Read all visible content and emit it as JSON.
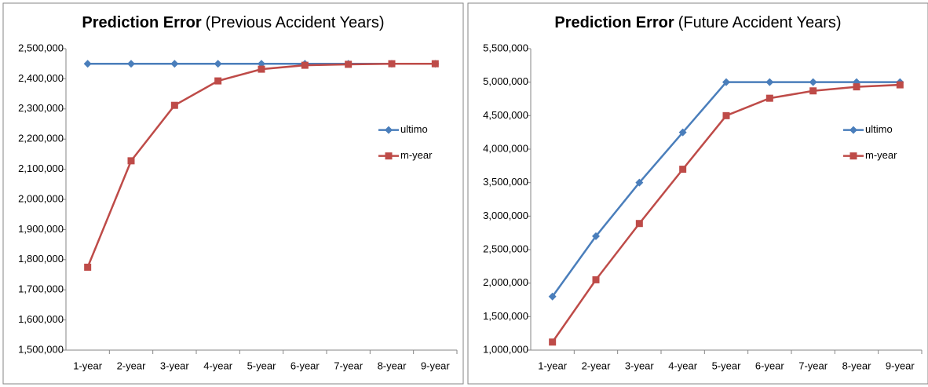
{
  "chart_data": [
    {
      "type": "line",
      "title": "Prediction Error",
      "subtitle": "(Previous Accident Years)",
      "categories": [
        "1-year",
        "2-year",
        "3-year",
        "4-year",
        "5-year",
        "6-year",
        "7-year",
        "8-year",
        "9-year"
      ],
      "series": [
        {
          "name": "ultimo",
          "color": "#4a7ebb",
          "marker": "diamond",
          "values": [
            2450000,
            2450000,
            2450000,
            2450000,
            2450000,
            2450000,
            2450000,
            2450000,
            2450000
          ]
        },
        {
          "name": "m-year",
          "color": "#be4b48",
          "marker": "square",
          "values": [
            1775000,
            2128000,
            2312000,
            2393000,
            2432000,
            2445000,
            2448000,
            2450000,
            2450000
          ]
        }
      ],
      "ylim": [
        1500000,
        2500000
      ],
      "yticks": [
        {
          "value": 1500000,
          "label": "1,500,000"
        },
        {
          "value": 1600000,
          "label": "1,600,000"
        },
        {
          "value": 1700000,
          "label": "1,700,000"
        },
        {
          "value": 1800000,
          "label": "1,800,000"
        },
        {
          "value": 1900000,
          "label": "1,900,000"
        },
        {
          "value": 2000000,
          "label": "2,000,000"
        },
        {
          "value": 2100000,
          "label": "2,100,000"
        },
        {
          "value": 2200000,
          "label": "2,200,000"
        },
        {
          "value": 2300000,
          "label": "2,300,000"
        },
        {
          "value": 2400000,
          "label": "2,400,000"
        },
        {
          "value": 2500000,
          "label": "2,500,000"
        }
      ],
      "grid": false,
      "legend": "right"
    },
    {
      "type": "line",
      "title": "Prediction Error",
      "subtitle": "(Future Accident Years)",
      "categories": [
        "1-year",
        "2-year",
        "3-year",
        "4-year",
        "5-year",
        "6-year",
        "7-year",
        "8-year",
        "9-year"
      ],
      "series": [
        {
          "name": "ultimo",
          "color": "#4a7ebb",
          "marker": "diamond",
          "values": [
            1800000,
            2700000,
            3500000,
            4250000,
            5000000,
            5000000,
            5000000,
            5000000,
            5000000
          ]
        },
        {
          "name": "m-year",
          "color": "#be4b48",
          "marker": "square",
          "values": [
            1120000,
            2050000,
            2890000,
            3700000,
            4500000,
            4760000,
            4870000,
            4930000,
            4960000
          ]
        }
      ],
      "ylim": [
        1000000,
        5500000
      ],
      "yticks": [
        {
          "value": 1000000,
          "label": "1,000,000"
        },
        {
          "value": 1500000,
          "label": "1,500,000"
        },
        {
          "value": 2000000,
          "label": "2,000,000"
        },
        {
          "value": 2500000,
          "label": "2,500,000"
        },
        {
          "value": 3000000,
          "label": "3,000,000"
        },
        {
          "value": 3500000,
          "label": "3,500,000"
        },
        {
          "value": 4000000,
          "label": "4,000,000"
        },
        {
          "value": 4500000,
          "label": "4,500,000"
        },
        {
          "value": 5000000,
          "label": "5,000,000"
        },
        {
          "value": 5500000,
          "label": "5,500,000"
        }
      ],
      "grid": false,
      "legend": "right"
    }
  ]
}
